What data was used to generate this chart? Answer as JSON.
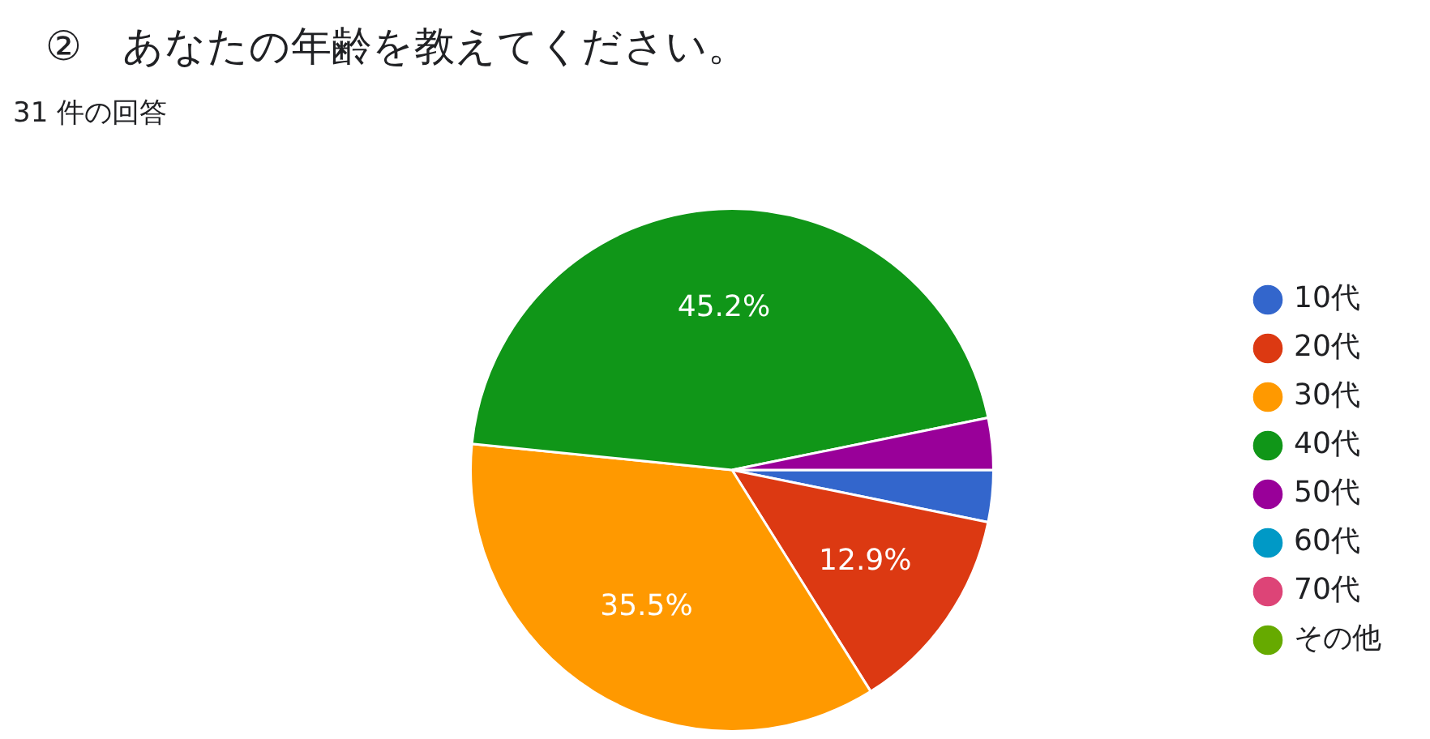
{
  "chart_data": {
    "type": "pie",
    "title": "②　あなたの年齢を教えてください。",
    "subtitle": "31 件の回答",
    "categories": [
      "10代",
      "20代",
      "30代",
      "40代",
      "50代",
      "60代",
      "70代",
      "その他"
    ],
    "values": [
      3.2,
      12.9,
      35.5,
      45.2,
      3.2,
      0,
      0,
      0
    ],
    "colors": [
      "#3366cc",
      "#dc3912",
      "#ff9900",
      "#109618",
      "#990099",
      "#0099c6",
      "#dd4477",
      "#66aa00"
    ],
    "value_labels": [
      null,
      "12.9%",
      "35.5%",
      "45.2%",
      null,
      null,
      null,
      null
    ],
    "legend": "right"
  }
}
